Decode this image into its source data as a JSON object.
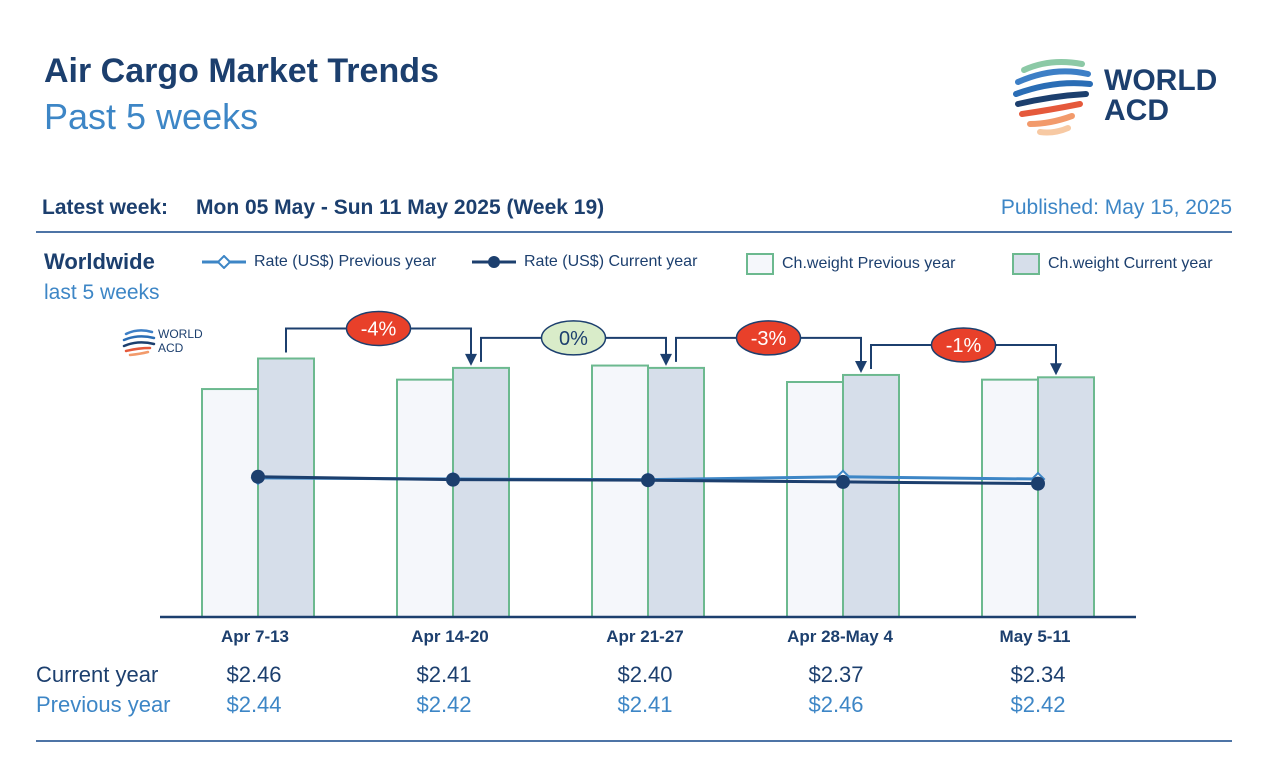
{
  "header": {
    "title": "Air Cargo Market Trends",
    "subtitle": "Past 5 weeks",
    "logo_line1": "WORLD",
    "logo_line2": "ACD"
  },
  "info": {
    "latest_label": "Latest week:",
    "latest_value": "Mon 05 May - Sun 11 May 2025 (Week 19)",
    "published": "Published: May 15, 2025"
  },
  "panel": {
    "region": "Worldwide",
    "period": "last 5 weeks",
    "watermark_line1": "WORLD",
    "watermark_line2": "ACD"
  },
  "legend": {
    "rate_prev": "Rate (US$) Previous year",
    "rate_cur": "Rate (US$) Current year",
    "cw_prev": "Ch.weight Previous year",
    "cw_cur": "Ch.weight Current year"
  },
  "colors": {
    "navy": "#1c3f6e",
    "light_blue": "#3d86c6",
    "bar_prev_fill": "#f5f7fb",
    "bar_cur_fill": "#d6deea",
    "bar_border": "#6cb98f",
    "badge_red": "#e8402a",
    "badge_green": "#d9ecc9"
  },
  "table": {
    "current_label": "Current year",
    "previous_label": "Previous year"
  },
  "chart_data": {
    "type": "bar",
    "categories": [
      "Apr 7-13",
      "Apr 14-20",
      "Apr 21-27",
      "Apr 28-May 4",
      "May 5-11"
    ],
    "series": [
      {
        "name": "Ch.weight Previous year",
        "type": "bar",
        "values": [
          97,
          101,
          107,
          100,
          101
        ]
      },
      {
        "name": "Ch.weight Current year",
        "type": "bar",
        "values": [
          110,
          106,
          106,
          103,
          102
        ]
      },
      {
        "name": "Rate (US$) Previous year",
        "type": "line",
        "values": [
          2.44,
          2.42,
          2.41,
          2.46,
          2.42
        ]
      },
      {
        "name": "Rate (US$) Current year",
        "type": "line",
        "values": [
          2.46,
          2.41,
          2.4,
          2.37,
          2.34
        ]
      }
    ],
    "rate_current_labels": [
      "$2.46",
      "$2.41",
      "$2.40",
      "$2.37",
      "$2.34"
    ],
    "rate_previous_labels": [
      "$2.44",
      "$2.42",
      "$2.41",
      "$2.46",
      "$2.42"
    ],
    "week_changes": [
      "-4%",
      "0%",
      "-3%",
      "-1%"
    ],
    "week_change_colors": [
      "#e8402a",
      "#d9ecc9",
      "#e8402a",
      "#e8402a"
    ],
    "bar_ylim": [
      0,
      120
    ],
    "rate_ylim": [
      0,
      5
    ]
  }
}
